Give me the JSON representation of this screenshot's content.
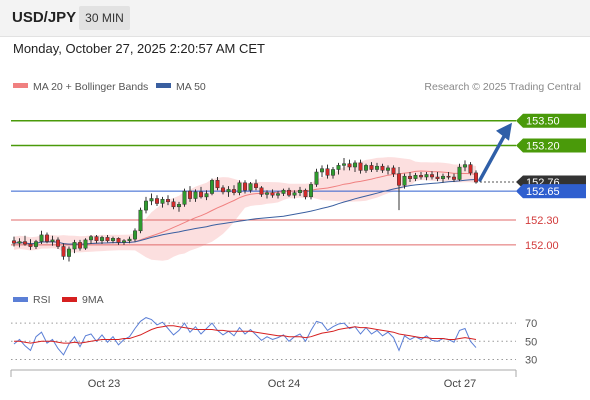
{
  "header": {
    "symbol": "USD/JPY",
    "timeframe": "30 MIN",
    "datetime": "Monday, October 27, 2025 2:20:57 AM CET"
  },
  "chart_data": [
    {
      "type": "candlestick",
      "legend": [
        {
          "label": "MA 20 + Bollinger Bands",
          "color": "#f08080"
        },
        {
          "label": "MA 50",
          "color": "#3a5fa0"
        }
      ],
      "attribution": "Research © 2025 Trading Central",
      "x_ticks": [
        "Oct 23",
        "Oct 24",
        "Oct 27"
      ],
      "ylim": [
        151.6,
        153.75
      ],
      "candles": [
        [
          152.05,
          152.1,
          151.98,
          152.02
        ],
        [
          152.02,
          152.08,
          151.97,
          152.04
        ],
        [
          152.04,
          152.11,
          151.99,
          152.01
        ],
        [
          152.01,
          152.07,
          151.94,
          151.98
        ],
        [
          151.98,
          152.06,
          151.95,
          152.04
        ],
        [
          152.04,
          152.17,
          152.01,
          152.12
        ],
        [
          152.12,
          152.15,
          152.02,
          152.04
        ],
        [
          152.04,
          152.11,
          151.99,
          152.06
        ],
        [
          152.06,
          152.09,
          151.95,
          151.98
        ],
        [
          151.98,
          152.02,
          151.82,
          151.86
        ],
        [
          151.86,
          151.98,
          151.8,
          151.95
        ],
        [
          151.95,
          152.06,
          151.9,
          152.03
        ],
        [
          152.03,
          152.06,
          151.93,
          151.96
        ],
        [
          151.96,
          152.08,
          151.94,
          152.06
        ],
        [
          152.06,
          152.12,
          152.01,
          152.1
        ],
        [
          152.1,
          152.12,
          152.02,
          152.05
        ],
        [
          152.05,
          152.11,
          152.01,
          152.09
        ],
        [
          152.09,
          152.12,
          152.03,
          152.05
        ],
        [
          152.05,
          152.1,
          152.02,
          152.08
        ],
        [
          152.08,
          152.09,
          152.0,
          152.03
        ],
        [
          152.03,
          152.07,
          152.0,
          152.05
        ],
        [
          152.05,
          152.1,
          152.02,
          152.07
        ],
        [
          152.07,
          152.2,
          152.04,
          152.17
        ],
        [
          152.17,
          152.45,
          152.14,
          152.42
        ],
        [
          152.42,
          152.58,
          152.38,
          152.53
        ],
        [
          152.53,
          152.62,
          152.48,
          152.56
        ],
        [
          152.56,
          152.6,
          152.47,
          152.5
        ],
        [
          152.5,
          152.58,
          152.45,
          152.55
        ],
        [
          152.55,
          152.6,
          152.48,
          152.52
        ],
        [
          152.52,
          152.56,
          152.43,
          152.46
        ],
        [
          152.46,
          152.52,
          152.4,
          152.49
        ],
        [
          152.49,
          152.68,
          152.46,
          152.65
        ],
        [
          152.65,
          152.71,
          152.52,
          152.56
        ],
        [
          152.56,
          152.67,
          152.52,
          152.64
        ],
        [
          152.64,
          152.7,
          152.56,
          152.58
        ],
        [
          152.58,
          152.66,
          152.54,
          152.62
        ],
        [
          152.62,
          152.8,
          152.6,
          152.78
        ],
        [
          152.78,
          152.82,
          152.66,
          152.69
        ],
        [
          152.69,
          152.72,
          152.61,
          152.64
        ],
        [
          152.64,
          152.71,
          152.58,
          152.67
        ],
        [
          152.67,
          152.72,
          152.6,
          152.63
        ],
        [
          152.63,
          152.78,
          152.6,
          152.75
        ],
        [
          152.75,
          152.78,
          152.62,
          152.66
        ],
        [
          152.66,
          152.76,
          152.63,
          152.74
        ],
        [
          152.74,
          152.79,
          152.66,
          152.69
        ],
        [
          152.69,
          152.71,
          152.58,
          152.61
        ],
        [
          152.61,
          152.66,
          152.56,
          152.63
        ],
        [
          152.63,
          152.67,
          152.57,
          152.6
        ],
        [
          152.6,
          152.65,
          152.56,
          152.62
        ],
        [
          152.62,
          152.68,
          152.59,
          152.66
        ],
        [
          152.66,
          152.69,
          152.58,
          152.6
        ],
        [
          152.6,
          152.66,
          152.56,
          152.63
        ],
        [
          152.63,
          152.7,
          152.59,
          152.66
        ],
        [
          152.66,
          152.68,
          152.55,
          152.58
        ],
        [
          152.58,
          152.76,
          152.55,
          152.73
        ],
        [
          152.73,
          152.92,
          152.7,
          152.88
        ],
        [
          152.88,
          152.96,
          152.82,
          152.92
        ],
        [
          152.92,
          152.97,
          152.8,
          152.84
        ],
        [
          152.84,
          152.94,
          152.8,
          152.91
        ],
        [
          152.91,
          152.99,
          152.85,
          152.96
        ],
        [
          152.96,
          153.05,
          152.9,
          152.98
        ],
        [
          152.98,
          153.03,
          152.9,
          152.94
        ],
        [
          152.94,
          153.02,
          152.88,
          152.99
        ],
        [
          152.99,
          153.03,
          152.86,
          152.9
        ],
        [
          152.9,
          152.98,
          152.87,
          152.96
        ],
        [
          152.96,
          153.0,
          152.88,
          152.91
        ],
        [
          152.91,
          152.99,
          152.88,
          152.95
        ],
        [
          152.95,
          152.98,
          152.87,
          152.9
        ],
        [
          152.9,
          152.96,
          152.85,
          152.93
        ],
        [
          152.93,
          152.96,
          152.82,
          152.86
        ],
        [
          152.86,
          152.94,
          152.42,
          152.72
        ],
        [
          152.72,
          152.86,
          152.68,
          152.83
        ],
        [
          152.83,
          152.88,
          152.76,
          152.8
        ],
        [
          152.8,
          152.87,
          152.77,
          152.84
        ],
        [
          152.84,
          152.88,
          152.79,
          152.82
        ],
        [
          152.82,
          152.88,
          152.78,
          152.85
        ],
        [
          152.85,
          152.89,
          152.79,
          152.82
        ],
        [
          152.82,
          152.88,
          152.77,
          152.8
        ],
        [
          152.8,
          152.86,
          152.75,
          152.83
        ],
        [
          152.83,
          152.88,
          152.79,
          152.82
        ],
        [
          152.82,
          152.86,
          152.76,
          152.79
        ],
        [
          152.79,
          152.98,
          152.77,
          152.94
        ],
        [
          152.94,
          153.02,
          152.89,
          152.97
        ],
        [
          152.97,
          153.0,
          152.84,
          152.87
        ],
        [
          152.87,
          152.9,
          152.74,
          152.76
        ]
      ],
      "levels": [
        {
          "price": 153.5,
          "label": "153.50",
          "kind": "resistance"
        },
        {
          "price": 153.2,
          "label": "153.20",
          "kind": "resistance"
        },
        {
          "price": 152.65,
          "label": "152.65",
          "kind": "pivot"
        },
        {
          "price": 152.3,
          "label": "152.30",
          "kind": "support"
        },
        {
          "price": 152.0,
          "label": "152.00",
          "kind": "support"
        }
      ],
      "last_price": {
        "price": 152.76,
        "label": "152.76"
      },
      "forecast_arrow": {
        "from": 152.76,
        "to": 153.5
      }
    },
    {
      "type": "line",
      "legend": [
        {
          "label": "RSI",
          "color": "#5b7fd6"
        },
        {
          "label": "9MA",
          "color": "#d62020"
        }
      ],
      "y_ticks": [
        "70",
        "50",
        "30"
      ],
      "ylim": [
        25,
        80
      ],
      "rsi": [
        47,
        52,
        45,
        40,
        55,
        60,
        48,
        52,
        42,
        35,
        47,
        55,
        44,
        56,
        58,
        50,
        57,
        49,
        55,
        46,
        52,
        55,
        64,
        72,
        76,
        74,
        68,
        71,
        64,
        57,
        62,
        70,
        60,
        66,
        58,
        64,
        70,
        62,
        57,
        61,
        56,
        65,
        58,
        63,
        57,
        51,
        55,
        52,
        54,
        57,
        50,
        55,
        58,
        50,
        62,
        72,
        70,
        62,
        66,
        69,
        70,
        64,
        66,
        58,
        65,
        58,
        62,
        56,
        60,
        54,
        40,
        56,
        52,
        55,
        52,
        56,
        51,
        50,
        53,
        52,
        49,
        62,
        64,
        50,
        43
      ],
      "ma9": [
        50,
        50,
        49,
        48,
        49,
        50,
        50,
        50,
        49,
        48,
        48,
        49,
        48,
        49,
        50,
        51,
        52,
        52,
        52,
        52,
        53,
        53,
        55,
        57,
        60,
        63,
        65,
        66,
        67,
        67,
        66,
        65,
        64,
        63,
        63,
        63,
        63,
        62,
        62,
        61,
        61,
        61,
        61,
        61,
        60,
        59,
        58,
        57,
        56,
        56,
        55,
        55,
        55,
        54,
        55,
        57,
        59,
        60,
        61,
        63,
        64,
        65,
        66,
        65,
        65,
        64,
        63,
        62,
        61,
        60,
        58,
        57,
        56,
        55,
        54,
        54,
        53,
        53,
        53,
        52,
        52,
        53,
        54,
        53,
        52
      ]
    }
  ]
}
